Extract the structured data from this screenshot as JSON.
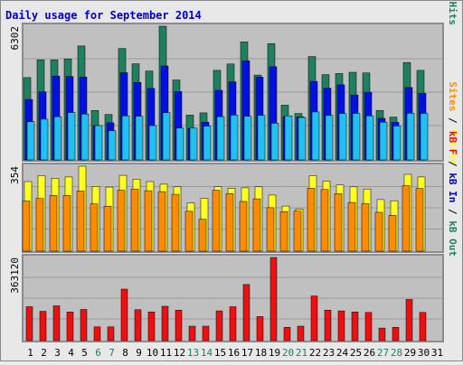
{
  "title": "Daily usage for September 2014",
  "colors": {
    "title": "#0000c0",
    "panel_bg": "#c0c0c0",
    "page_bg": "#e8e8e8",
    "frame": "#8c8c8c",
    "grid": "#9a9a9a",
    "hits": "#1f8060",
    "files": "#0010e0",
    "pages": "#20c0f0",
    "visits": "#ffff20",
    "sites": "#ff8c00",
    "kbf": "#ee1010",
    "kbin": "#0000c0",
    "kbout": "#1f8060",
    "weekday": "#000000",
    "weekend": "#1f8060"
  },
  "chart_data": {
    "type": "bar",
    "title": "Daily usage for September 2014",
    "categories": [
      "1",
      "2",
      "3",
      "4",
      "5",
      "6",
      "7",
      "8",
      "9",
      "10",
      "11",
      "12",
      "13",
      "14",
      "15",
      "16",
      "17",
      "18",
      "19",
      "20",
      "21",
      "22",
      "23",
      "24",
      "25",
      "26",
      "27",
      "28",
      "29",
      "30",
      "31"
    ],
    "weekend_days": [
      6,
      7,
      13,
      14,
      20,
      21,
      27,
      28
    ],
    "panels": [
      {
        "id": "usage",
        "ymax_label": "6302",
        "ymax": 6302,
        "side_labels": [
          {
            "text": "Pages",
            "color_key": "pages"
          },
          {
            "text": " / ",
            "color_key": "weekday"
          },
          {
            "text": "Files",
            "color_key": "files"
          },
          {
            "text": " / ",
            "color_key": "weekday"
          },
          {
            "text": "Hits",
            "color_key": "hits"
          }
        ],
        "series": [
          {
            "name": "Hits",
            "color_key": "hits",
            "values": [
              3880,
              4720,
              4720,
              4760,
              5370,
              2330,
              2140,
              5250,
              4530,
              4190,
              6302,
              3770,
              2110,
              2220,
              4220,
              4520,
              5560,
              4000,
              5480,
              2580,
              2190,
              4870,
              4020,
              4070,
              4130,
              4100,
              2330,
              2020,
              4590,
              4220,
              0
            ]
          },
          {
            "name": "Files",
            "color_key": "files",
            "values": [
              2850,
              3210,
              3950,
              3930,
              3910,
              1620,
              1750,
              4110,
              3650,
              3370,
              4430,
              3220,
              1480,
              1780,
              3280,
              3680,
              4670,
              3900,
              4390,
              2030,
              2030,
              3700,
              3380,
              3540,
              3060,
              3190,
              1960,
              1770,
              3410,
              3140,
              0
            ]
          },
          {
            "name": "Pages",
            "color_key": "pages",
            "values": [
              1800,
              1920,
              2040,
              2230,
              2160,
              1620,
              1380,
              2080,
              2060,
              1620,
              2230,
              1500,
              1500,
              1590,
              2040,
              2110,
              2060,
              2100,
              1730,
              2080,
              2000,
              2260,
              2100,
              2190,
              2190,
              2080,
              1780,
              1600,
              2200,
              2190,
              0
            ]
          }
        ]
      },
      {
        "id": "visits",
        "ymax_label": "354",
        "ymax": 354,
        "side_labels": [
          {
            "text": "Sites",
            "color_key": "sites"
          },
          {
            "text": " / ",
            "color_key": "weekday"
          },
          {
            "text": "Visits",
            "color_key": "visits"
          }
        ],
        "series": [
          {
            "name": "Visits",
            "color_key": "visits",
            "values": [
              290,
              315,
              304,
              309,
              354,
              270,
              267,
              316,
              300,
              290,
              279,
              268,
              201,
              220,
              269,
              262,
              264,
              268,
              234,
              188,
              175,
              315,
              292,
              276,
              268,
              259,
              215,
              210,
              320,
              309,
              0
            ]
          },
          {
            "name": "Sites",
            "color_key": "sites",
            "values": [
              209,
              220,
              232,
              232,
              251,
              197,
              187,
              254,
              259,
              252,
              248,
              237,
              166,
              133,
              254,
              240,
              207,
              218,
              181,
              165,
              167,
              262,
              257,
              239,
              203,
              198,
              162,
              149,
              273,
              261,
              0
            ]
          }
        ]
      },
      {
        "id": "volume",
        "ymax_label": "363120",
        "ymax": 363120,
        "side_labels": [
          {
            "text": "kB F",
            "color_key": "kbf"
          },
          {
            "text": " / ",
            "color_key": "weekday"
          },
          {
            "text": "kB In",
            "color_key": "kbin"
          },
          {
            "text": " / ",
            "color_key": "weekday"
          },
          {
            "text": "kB Out",
            "color_key": "kbout"
          }
        ],
        "series": [
          {
            "name": "kB F",
            "color_key": "kbf",
            "values": [
              148000,
              128000,
              152000,
              125000,
              136000,
              60000,
              60000,
              225000,
              135000,
              125000,
              150000,
              133000,
              63000,
              63000,
              130000,
              148000,
              245000,
              105000,
              363120,
              58000,
              63000,
              195000,
              133000,
              130000,
              125000,
              123000,
              55000,
              58000,
              180000,
              123000,
              0
            ]
          }
        ]
      }
    ]
  }
}
